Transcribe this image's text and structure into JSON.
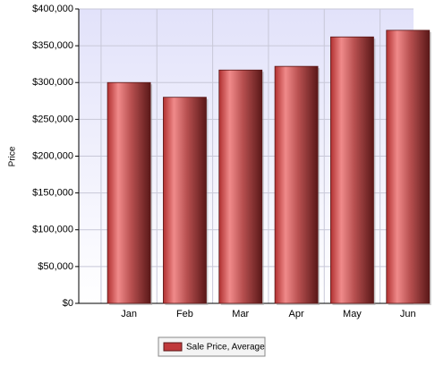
{
  "chart_data": {
    "type": "bar",
    "y_label": "Price",
    "categories": [
      "Jan",
      "Feb",
      "Mar",
      "Apr",
      "May",
      "Jun"
    ],
    "series": [
      {
        "name": "Sale Price, Average",
        "color": "#c0393b",
        "values": [
          300000,
          280000,
          317000,
          322000,
          362000,
          371000
        ]
      }
    ],
    "ylim": [
      0,
      400000
    ],
    "yticks": [
      {
        "value": 0,
        "label": "$0"
      },
      {
        "value": 50000,
        "label": "$50,000"
      },
      {
        "value": 100000,
        "label": "$100,000"
      },
      {
        "value": 150000,
        "label": "$150,000"
      },
      {
        "value": 200000,
        "label": "$200,000"
      },
      {
        "value": 250000,
        "label": "$250,000"
      },
      {
        "value": 300000,
        "label": "$300,000"
      },
      {
        "value": 350000,
        "label": "$350,000"
      },
      {
        "value": 400000,
        "label": "$400,000"
      }
    ],
    "grid": true
  }
}
